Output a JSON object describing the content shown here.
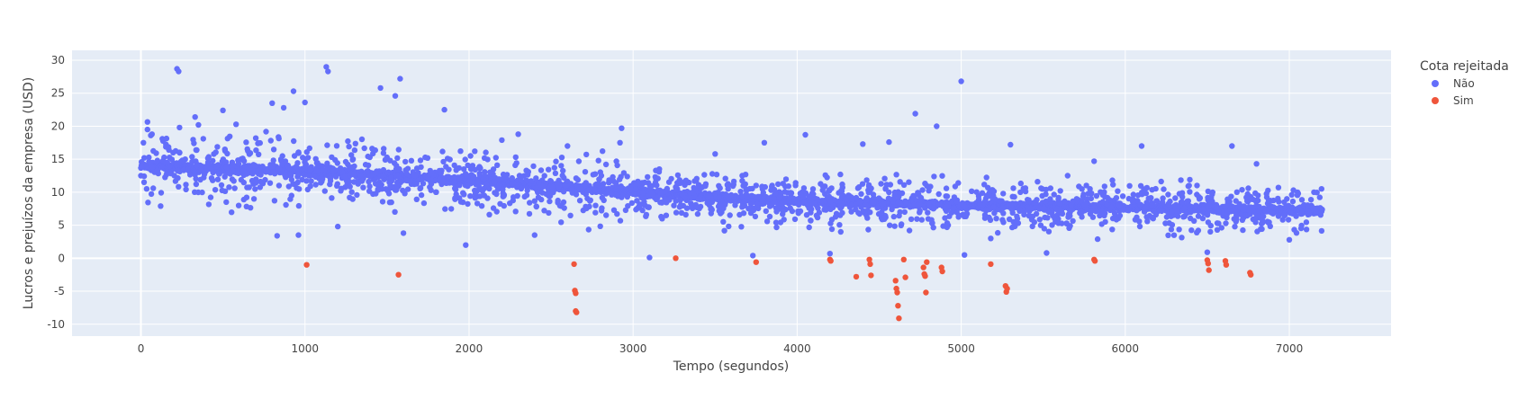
{
  "chart_data": {
    "type": "scatter",
    "xlabel": "Tempo (segundos)",
    "ylabel": "Lucros e prejuízos da empresa (USD)",
    "xlim": [
      -420,
      7620
    ],
    "ylim": [
      -11.8,
      31.5
    ],
    "xticks": [
      0,
      1000,
      2000,
      3000,
      4000,
      5000,
      6000,
      7000
    ],
    "yticks": [
      -10,
      -5,
      0,
      5,
      10,
      15,
      20,
      25,
      30
    ],
    "grid": true,
    "legend": {
      "title": "Cota rejeitada",
      "placement": "top-right"
    },
    "series": [
      {
        "name": "Não",
        "color": "#636efa",
        "trend": [
          [
            0,
            13.9
          ],
          [
            1000,
            13.2
          ],
          [
            2000,
            11.8
          ],
          [
            3000,
            10.0
          ],
          [
            4000,
            8.6
          ],
          [
            5000,
            8.1
          ],
          [
            6000,
            7.7
          ],
          [
            7200,
            7.2
          ]
        ],
        "samples": [
          [
            0,
            12.5
          ],
          [
            20,
            15.2
          ],
          [
            35,
            10.5
          ],
          [
            40,
            19.5
          ],
          [
            60,
            18.6
          ],
          [
            100,
            14.8
          ],
          [
            120,
            7.9
          ],
          [
            160,
            14.5
          ],
          [
            220,
            28.7
          ],
          [
            230,
            28.3
          ],
          [
            235,
            19.8
          ],
          [
            330,
            21.4
          ],
          [
            380,
            18.1
          ],
          [
            500,
            22.4
          ],
          [
            520,
            8.5
          ],
          [
            580,
            20.3
          ],
          [
            700,
            18.2
          ],
          [
            800,
            23.5
          ],
          [
            830,
            3.4
          ],
          [
            870,
            22.8
          ],
          [
            930,
            25.3
          ],
          [
            960,
            3.5
          ],
          [
            1000,
            23.6
          ],
          [
            1130,
            29.0
          ],
          [
            1140,
            28.3
          ],
          [
            1200,
            4.8
          ],
          [
            1460,
            25.8
          ],
          [
            1550,
            24.6
          ],
          [
            1580,
            27.2
          ],
          [
            1600,
            3.8
          ],
          [
            1850,
            22.5
          ],
          [
            1980,
            2.0
          ],
          [
            2200,
            17.9
          ],
          [
            2300,
            18.8
          ],
          [
            2400,
            3.5
          ],
          [
            2600,
            17.0
          ],
          [
            2920,
            17.5
          ],
          [
            2930,
            19.7
          ],
          [
            3100,
            0.1
          ],
          [
            3500,
            15.8
          ],
          [
            3730,
            0.4
          ],
          [
            3800,
            17.5
          ],
          [
            4050,
            18.7
          ],
          [
            4200,
            0.7
          ],
          [
            4400,
            17.3
          ],
          [
            4560,
            17.6
          ],
          [
            4720,
            21.9
          ],
          [
            4850,
            20.0
          ],
          [
            5000,
            26.8
          ],
          [
            5020,
            0.5
          ],
          [
            5180,
            3.0
          ],
          [
            5300,
            17.2
          ],
          [
            5520,
            0.8
          ],
          [
            5810,
            14.7
          ],
          [
            6100,
            17.0
          ],
          [
            6500,
            0.9
          ],
          [
            6650,
            17.0
          ],
          [
            6800,
            14.3
          ],
          [
            7000,
            2.8
          ],
          [
            7150,
            10.0
          ]
        ]
      },
      {
        "name": "Sim",
        "color": "#ef553b",
        "points": [
          [
            1010,
            -1.0
          ],
          [
            1570,
            -2.5
          ],
          [
            2640,
            -0.9
          ],
          [
            2645,
            -4.9
          ],
          [
            2650,
            -5.3
          ],
          [
            2650,
            -8.0
          ],
          [
            2655,
            -8.2
          ],
          [
            3260,
            0.0
          ],
          [
            3750,
            -0.6
          ],
          [
            4200,
            -0.2
          ],
          [
            4205,
            -0.4
          ],
          [
            4360,
            -2.8
          ],
          [
            4440,
            -0.2
          ],
          [
            4445,
            -0.9
          ],
          [
            4450,
            -2.6
          ],
          [
            4600,
            -3.4
          ],
          [
            4605,
            -4.6
          ],
          [
            4610,
            -5.2
          ],
          [
            4615,
            -7.2
          ],
          [
            4620,
            -9.1
          ],
          [
            4650,
            -0.2
          ],
          [
            4660,
            -2.9
          ],
          [
            4770,
            -1.4
          ],
          [
            4775,
            -2.4
          ],
          [
            4780,
            -2.7
          ],
          [
            4785,
            -5.2
          ],
          [
            4790,
            -0.6
          ],
          [
            4880,
            -1.4
          ],
          [
            4885,
            -2.0
          ],
          [
            5180,
            -0.9
          ],
          [
            5270,
            -4.2
          ],
          [
            5275,
            -5.1
          ],
          [
            5280,
            -4.6
          ],
          [
            5810,
            -0.2
          ],
          [
            5815,
            -0.4
          ],
          [
            6500,
            -0.3
          ],
          [
            6505,
            -0.8
          ],
          [
            6510,
            -1.8
          ],
          [
            6610,
            -0.4
          ],
          [
            6615,
            -1.0
          ],
          [
            6760,
            -2.2
          ],
          [
            6765,
            -2.5
          ]
        ]
      }
    ]
  }
}
